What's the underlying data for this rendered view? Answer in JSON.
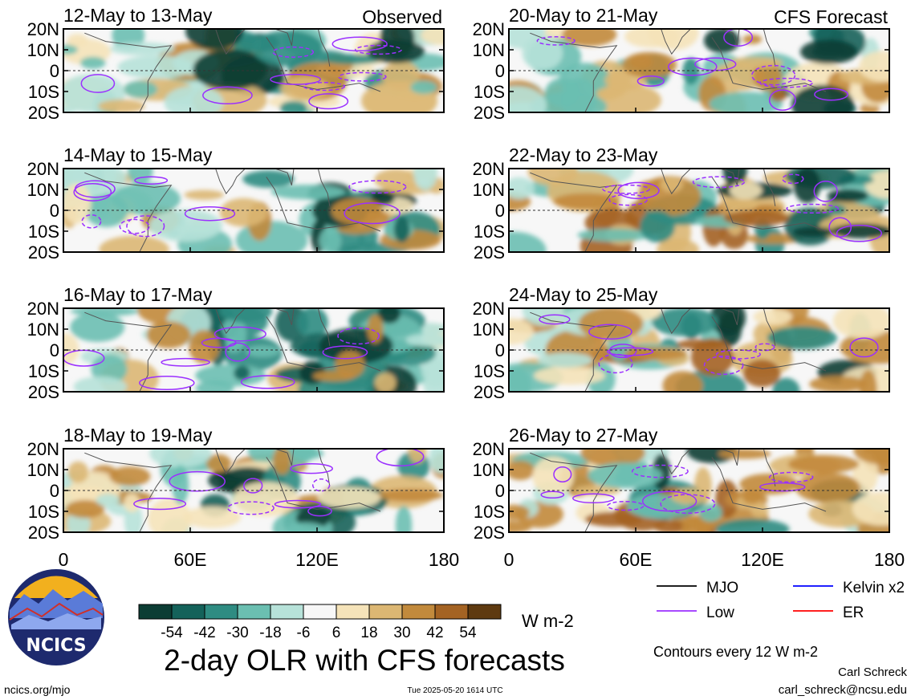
{
  "chart_data": {
    "type": "heatmap",
    "title": "2-day OLR with CFS forecasts",
    "units": "W m-2",
    "contour_note": "Contours every 12 W m-2",
    "x_ticks": [
      "0",
      "60E",
      "120E",
      "180"
    ],
    "y_ticks": [
      "20N",
      "10N",
      "0",
      "10S",
      "20S"
    ],
    "xlim": [
      0,
      180
    ],
    "ylim": [
      -20,
      20
    ],
    "colorbar": {
      "labels": [
        "-54",
        "-42",
        "-30",
        "-18",
        "-6",
        "6",
        "18",
        "30",
        "42",
        "54"
      ],
      "colors": [
        "#0c3d34",
        "#14625a",
        "#2f8c82",
        "#6bbfb1",
        "#b7e2d9",
        "#f7f7f7",
        "#f5e3b9",
        "#dcb773",
        "#c28a3c",
        "#a46323",
        "#5e3a10"
      ]
    },
    "legend": [
      {
        "label": "MJO",
        "color": "#000000"
      },
      {
        "label": "Kelvin x2",
        "color": "#0000ff"
      },
      {
        "label": "Low",
        "color": "#9b30ff"
      },
      {
        "label": "ER",
        "color": "#ff0000"
      }
    ],
    "panels": [
      {
        "label": "12-May to 13-May",
        "tag": "Observed"
      },
      {
        "label": "20-May to 21-May",
        "tag": "CFS Forecast"
      },
      {
        "label": "14-May to 15-May",
        "tag": ""
      },
      {
        "label": "22-May to 23-May",
        "tag": ""
      },
      {
        "label": "16-May to 17-May",
        "tag": ""
      },
      {
        "label": "24-May to 25-May",
        "tag": ""
      },
      {
        "label": "18-May to 19-May",
        "tag": ""
      },
      {
        "label": "26-May to 27-May",
        "tag": ""
      }
    ]
  },
  "footer": {
    "logo_text": "NCICS",
    "site": "ncics.org/mjo",
    "timestamp": "Tue 2025-05-20 1614 UTC",
    "author": "Carl Schreck",
    "email": "carl_schreck@ncsu.edu"
  }
}
